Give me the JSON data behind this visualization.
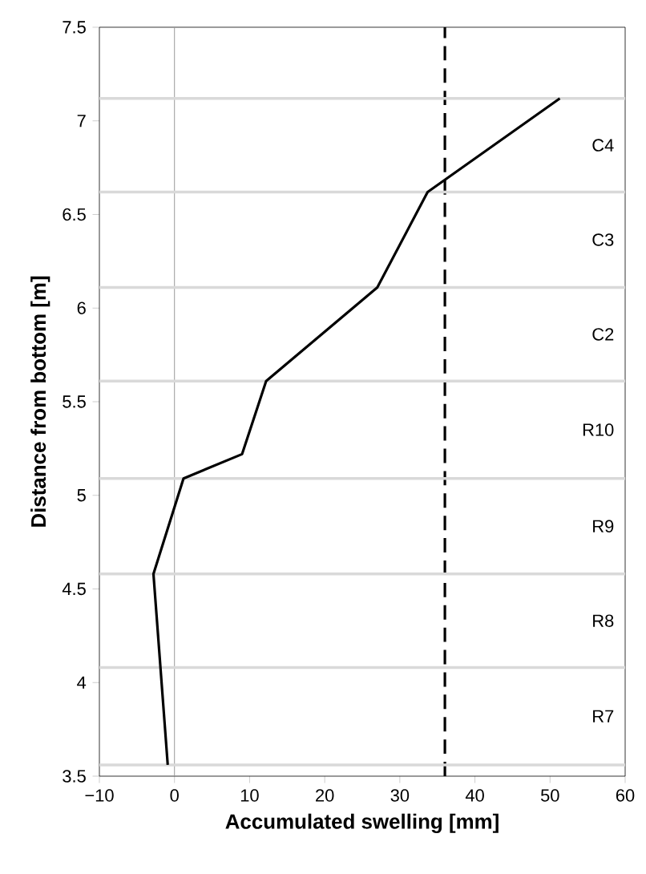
{
  "chart_data": {
    "type": "line",
    "xlabel": "Accumulated swelling [mm]",
    "ylabel": "Distance from bottom [m]",
    "x": [
      51.3,
      33.7,
      27.0,
      12.2,
      9.0,
      1.2,
      -2.8,
      -0.9
    ],
    "series": [
      {
        "color": "#000000",
        "values": [
          7.12,
          6.62,
          6.11,
          5.61,
          5.22,
          5.09,
          4.58,
          3.56
        ]
      }
    ],
    "xlim": [
      -10,
      60
    ],
    "xticks": [
      {
        "value": -10,
        "label": "−10"
      },
      0,
      10,
      20,
      30,
      40,
      50,
      60
    ],
    "ylim": [
      3.5,
      7.5
    ],
    "yticks": [
      3.5,
      4,
      4.5,
      5,
      5.5,
      6,
      6.5,
      7,
      7.5
    ],
    "ref_lines": [
      {
        "axis": "x",
        "value": 36,
        "color": "#000000",
        "line_style": "dashed"
      },
      {
        "axis": "x",
        "value": 0,
        "color": "#999999",
        "line_style": "solid"
      },
      {
        "axis": "y",
        "value": 7.12,
        "color": "#d9d9d9",
        "line_style": "solid"
      },
      {
        "axis": "y",
        "value": 6.62,
        "color": "#d9d9d9",
        "line_style": "solid"
      },
      {
        "axis": "y",
        "value": 6.11,
        "color": "#d9d9d9",
        "line_style": "solid"
      },
      {
        "axis": "y",
        "value": 5.61,
        "color": "#d9d9d9",
        "line_style": "solid"
      },
      {
        "axis": "y",
        "value": 5.09,
        "color": "#d9d9d9",
        "line_style": "solid"
      },
      {
        "axis": "y",
        "value": 4.58,
        "color": "#d9d9d9",
        "line_style": "solid"
      },
      {
        "axis": "y",
        "value": 4.08,
        "color": "#d9d9d9",
        "line_style": "solid"
      },
      {
        "axis": "y",
        "value": 3.56,
        "color": "#d9d9d9",
        "line_style": "solid"
      }
    ],
    "annotations": [
      "C4",
      "C3",
      "C2",
      "R10",
      "R9",
      "R8",
      "R7"
    ],
    "grid": false,
    "marker": "none",
    "line_style": "solid"
  }
}
